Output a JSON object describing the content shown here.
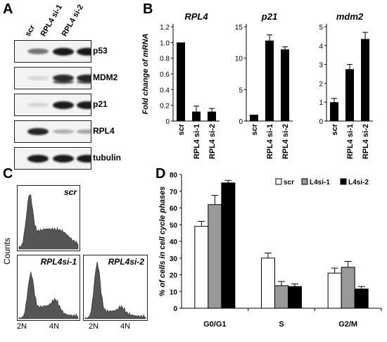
{
  "panels": {
    "A": {
      "label": "A",
      "lanes": [
        "scr",
        "RPL4 si-1",
        "RPL4 si-2"
      ],
      "blots": [
        {
          "name": "p53",
          "intensity": [
            0.55,
            1.0,
            1.0
          ]
        },
        {
          "name": "MDM2",
          "intensity": [
            0.05,
            0.9,
            0.95
          ]
        },
        {
          "name": "p21",
          "intensity": [
            0.05,
            1.0,
            1.0
          ]
        },
        {
          "name": "RPL4",
          "intensity": [
            0.95,
            0.25,
            0.3
          ]
        },
        {
          "name": "tubulin",
          "intensity": [
            1.0,
            1.0,
            1.0
          ]
        }
      ]
    },
    "B": {
      "label": "B"
    },
    "C": {
      "label": "C",
      "ylabel": "Counts",
      "histograms": [
        {
          "title": "scr",
          "ticks": []
        },
        {
          "title": "RPL4si-1",
          "ticks": [
            "2N",
            "4N"
          ]
        },
        {
          "title": "RPL4si-2",
          "ticks": [
            "2N",
            "4N"
          ]
        }
      ]
    },
    "D": {
      "label": "D"
    }
  },
  "chart_data": [
    {
      "type": "bar",
      "title": "RPL4",
      "ylabel": "Fold change of mRNA",
      "categories": [
        "scr",
        "RPL4 si-1",
        "RPL4 si-2"
      ],
      "values": [
        1.0,
        0.12,
        0.12
      ],
      "errors": [
        0,
        0.07,
        0.04
      ],
      "ylim": [
        0,
        1.2
      ],
      "yticks": [
        "0",
        "0.2",
        "0.4",
        "0.6",
        "0.8",
        "1.0",
        "1.2"
      ],
      "color": "#000000"
    },
    {
      "type": "bar",
      "title": "p21",
      "categories": [
        "scr",
        "RPL4 si-1",
        "RPL4 si-2"
      ],
      "values": [
        1.0,
        12.8,
        11.4
      ],
      "errors": [
        0,
        0.9,
        0.4
      ],
      "ylim": [
        0,
        15
      ],
      "yticks": [
        "0",
        "5",
        "10",
        "15"
      ],
      "color": "#000000"
    },
    {
      "type": "bar",
      "title": "mdm2",
      "categories": [
        "scr",
        "RPL4 si-1",
        "RPL4 si-2"
      ],
      "values": [
        1.0,
        2.75,
        4.35
      ],
      "errors": [
        0.2,
        0.25,
        0.35
      ],
      "ylim": [
        0,
        5
      ],
      "yticks": [
        "0",
        "1",
        "2",
        "3",
        "4",
        "5"
      ],
      "color": "#000000"
    },
    {
      "type": "bar",
      "ylabel": "% of cells in cell cycle phases",
      "categories": [
        "G0/G1",
        "S",
        "G2/M"
      ],
      "series": [
        {
          "name": "scr",
          "color": "#ffffff",
          "values": [
            49,
            30,
            21
          ],
          "errors": [
            3,
            3,
            3
          ]
        },
        {
          "name": "L4si-1",
          "color": "#999999",
          "values": [
            62,
            13.5,
            24.5
          ],
          "errors": [
            5.5,
            2.5,
            3.5
          ]
        },
        {
          "name": "L4si-2",
          "color": "#000000",
          "values": [
            75,
            13,
            11.5
          ],
          "errors": [
            1.5,
            1.5,
            1.5
          ]
        }
      ],
      "ylim": [
        0,
        80
      ],
      "yticks": [
        "0",
        "10",
        "20",
        "30",
        "40",
        "50",
        "60",
        "70",
        "80"
      ],
      "grid": false,
      "legend": "top-right"
    }
  ]
}
